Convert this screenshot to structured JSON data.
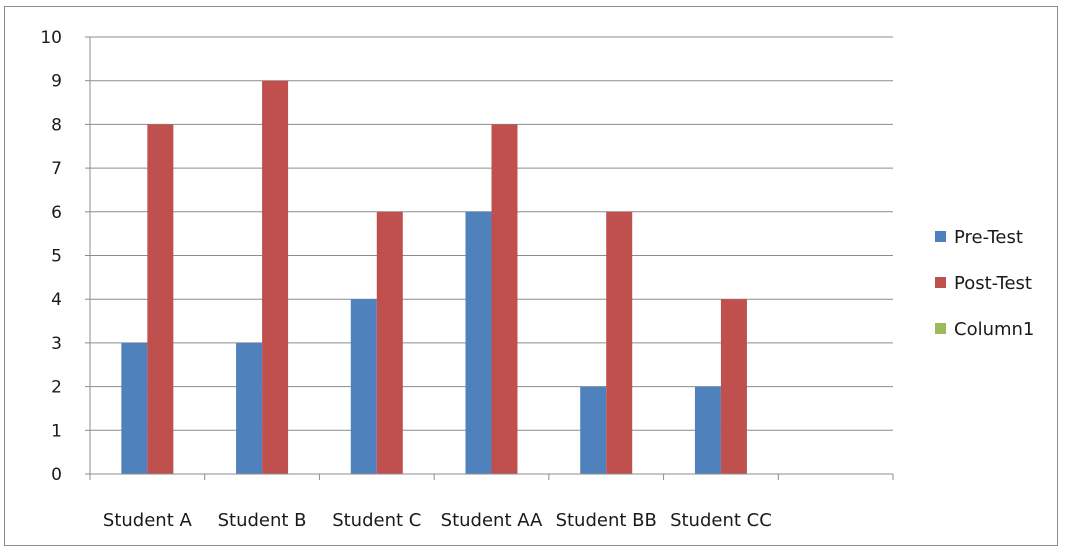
{
  "chart_data": {
    "type": "bar",
    "categories": [
      "Student A",
      "Student B",
      "Student C",
      "Student AA",
      "Student BB",
      "Student CC"
    ],
    "series": [
      {
        "name": "Pre-Test",
        "values": [
          3,
          3,
          4,
          6,
          2,
          2
        ],
        "color": "#4f81bd"
      },
      {
        "name": "Post-Test",
        "values": [
          8,
          9,
          6,
          8,
          6,
          4
        ],
        "color": "#c0504d"
      },
      {
        "name": "Column1",
        "values": [
          null,
          null,
          null,
          null,
          null,
          null
        ],
        "color": "#9bbb59"
      }
    ],
    "ylim": [
      0,
      10
    ],
    "yticks": [
      0,
      1,
      2,
      3,
      4,
      5,
      6,
      7,
      8,
      9,
      10
    ],
    "grid": true,
    "legend": "right"
  }
}
